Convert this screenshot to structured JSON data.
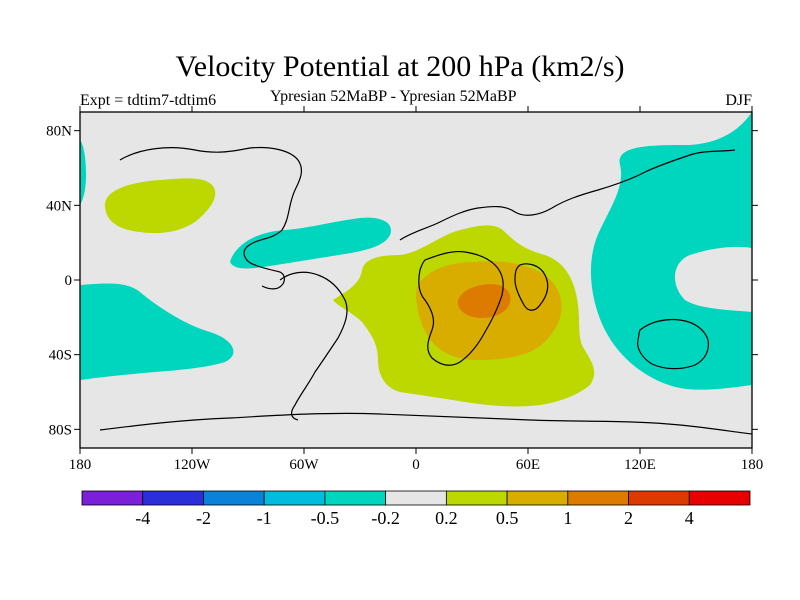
{
  "chart_data": {
    "type": "heatmap",
    "title": "Velocity Potential at 200 hPa (km2/s)",
    "left_label": "Expt = tdtim7-tdtim6",
    "center_label": "Ypresian  52MaBP - Ypresian  52MaBP",
    "right_label": "DJF",
    "x_ticks": [
      "180",
      "120W",
      "60W",
      "0",
      "60E",
      "120E",
      "180"
    ],
    "y_ticks": [
      "80N",
      "40N",
      "0",
      "40S",
      "80S"
    ],
    "xlim": [
      -180,
      180
    ],
    "ylim": [
      -90,
      90
    ],
    "colorbar": {
      "levels": [
        "-4",
        "-2",
        "-1",
        "-0.5",
        "-0.2",
        "0.2",
        "0.5",
        "1",
        "2",
        "4"
      ],
      "colors": [
        "#7b1fd9",
        "#2b2fd9",
        "#0a82d9",
        "#00bde0",
        "#00d6bd",
        "#e6e6e6",
        "#bcd800",
        "#d9ac00",
        "#dd7a00",
        "#dc3a00",
        "#e60000"
      ]
    },
    "regions": [
      {
        "name": "positive anomaly 0.2-0.5 (Africa/Atlantic)",
        "level": "0.2"
      },
      {
        "name": "positive anomaly 0.5-1 (Africa)",
        "level": "0.5"
      },
      {
        "name": "positive anomaly 1-2 (central Africa)",
        "level": "1"
      },
      {
        "name": "positive anomaly 0.2-0.5 (North Pacific)",
        "level": "0.2"
      },
      {
        "name": "negative anomaly -0.5 to -0.2 (Pacific / Asia)",
        "level": "-0.5"
      }
    ],
    "colors": {
      "background": "#ffffff",
      "neutral": "#e6e6e6",
      "coast": "#000000"
    }
  }
}
